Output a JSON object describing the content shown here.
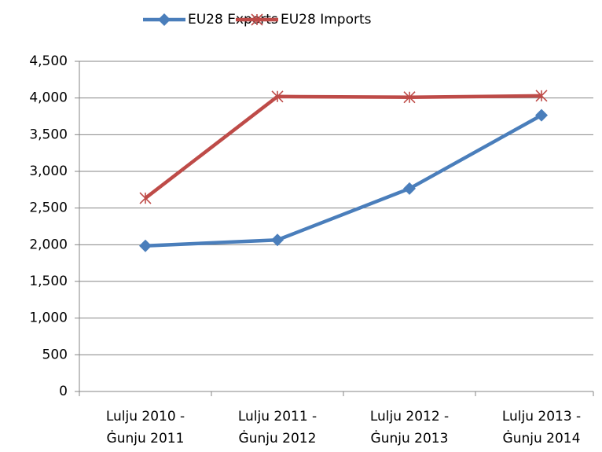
{
  "chart_data": {
    "type": "line",
    "categories": [
      "Lulju 2010 -\nĠunju 2011",
      "Lulju 2011 -\nĠunju 2012",
      "Lulju 2012 -\nĠunju 2013",
      "Lulju 2013 -\nĠunju 2014"
    ],
    "series": [
      {
        "name": "EU28 Exports",
        "color": "#4a7ebb",
        "marker": "diamond",
        "values": [
          1985,
          2065,
          2765,
          3765
        ]
      },
      {
        "name": "EU28 Imports",
        "color": "#be4b48",
        "marker": "star",
        "values": [
          2635,
          4020,
          4010,
          4030
        ]
      }
    ],
    "ylim": [
      0,
      4500
    ],
    "yticks": [
      0,
      500,
      {
        "value": 1000,
        "label": "1,000"
      },
      {
        "value": 1500,
        "label": "1,500"
      },
      {
        "value": 2000,
        "label": "2,000"
      },
      {
        "value": 2500,
        "label": "2,500"
      },
      {
        "value": 3000,
        "label": "3,000"
      },
      {
        "value": 3500,
        "label": "3,500"
      },
      {
        "value": 4000,
        "label": "4,000"
      },
      {
        "value": 4500,
        "label": "4,500"
      }
    ],
    "grid": true,
    "legend": "top"
  }
}
